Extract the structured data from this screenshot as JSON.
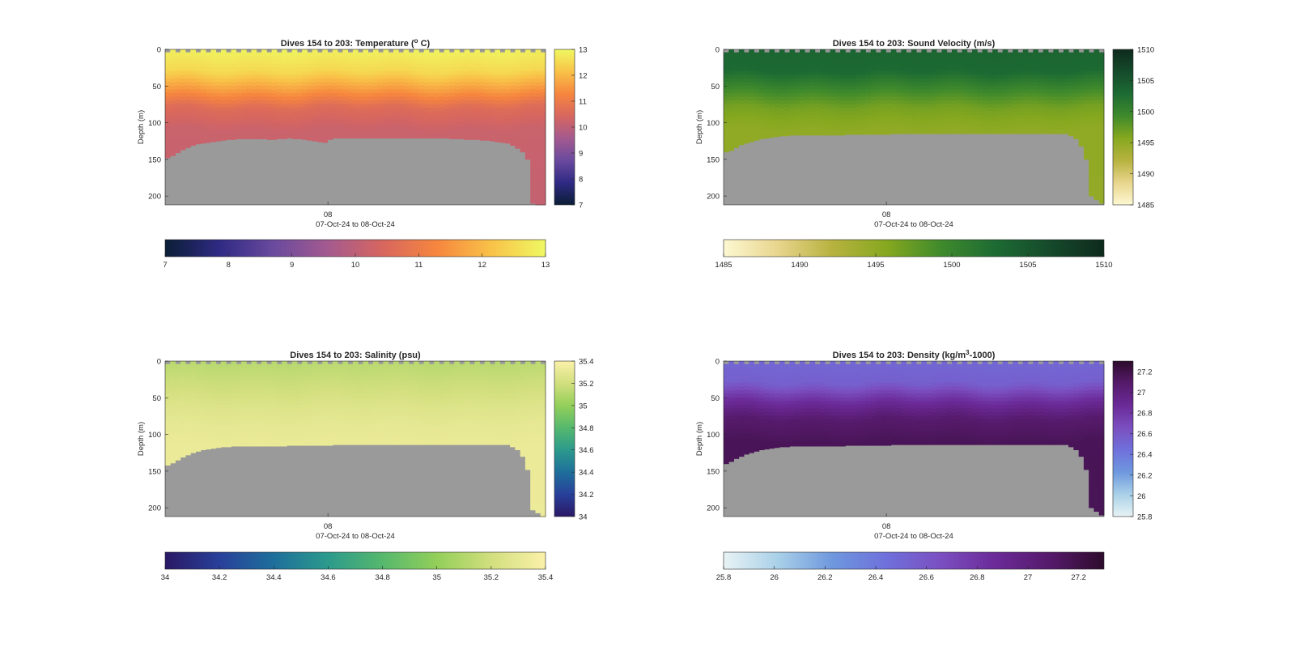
{
  "colors": {
    "background": "#ffffff",
    "nodata": "#9a9a9a",
    "axis": "#262626"
  },
  "chart_data": [
    {
      "id": "temperature",
      "type": "heatmap",
      "title_parts": [
        "Dives 154 to 203: Temperature (",
        "o",
        " C)"
      ],
      "ylabel": "Depth (m)",
      "xlabel": "07-Oct-24 to 08-Oct-24",
      "x_tick_labels": [
        "08"
      ],
      "y_ticks": [
        0,
        50,
        100,
        150,
        200
      ],
      "ylim": [
        0,
        212
      ],
      "y_reversed": true,
      "dives": [
        154,
        203
      ],
      "bottom_depth_m": [
        148,
        145,
        141,
        137,
        134,
        131,
        129,
        128,
        127,
        126,
        125,
        124,
        123,
        123,
        122,
        122,
        122,
        122,
        122,
        122,
        123,
        123,
        122,
        122,
        121,
        122,
        122,
        123,
        124,
        125,
        126,
        127,
        123,
        121,
        121,
        121,
        121,
        121,
        121,
        121,
        121,
        121,
        121,
        121,
        121,
        121,
        121,
        121,
        121,
        121,
        121,
        121,
        121,
        121,
        121,
        121,
        122,
        122,
        122,
        123,
        123,
        123,
        124,
        124,
        125,
        126,
        127,
        128,
        131,
        135,
        140,
        150,
        210,
        212,
        214
      ],
      "colorbar": {
        "label_side": "right",
        "range": [
          7,
          13
        ],
        "ticks": [
          7,
          8,
          9,
          10,
          11,
          12,
          13
        ],
        "colormap": [
          "#0b1e36",
          "#2f2a84",
          "#6a4a9e",
          "#a45a8f",
          "#d7665f",
          "#f6863e",
          "#f9c248",
          "#eff862"
        ]
      },
      "profile_stops": [
        [
          0,
          12.9
        ],
        [
          30,
          12.5
        ],
        [
          55,
          11.6
        ],
        [
          80,
          10.6
        ],
        [
          110,
          10.2
        ],
        [
          220,
          10.1
        ]
      ],
      "surface_value": 12.8
    },
    {
      "id": "sound_velocity",
      "type": "heatmap",
      "title_parts": [
        "Dives 154 to 203: Sound Velocity (m/s)"
      ],
      "ylabel": "Depth (m)",
      "xlabel": "07-Oct-24 to 08-Oct-24",
      "x_tick_labels": [
        "08"
      ],
      "y_ticks": [
        0,
        50,
        100,
        150,
        200
      ],
      "ylim": [
        0,
        212
      ],
      "y_reversed": true,
      "dives": [
        154,
        203
      ],
      "bottom_depth_m": [
        140,
        138,
        134,
        130,
        128,
        126,
        124,
        122,
        121,
        120,
        119,
        118,
        118,
        117,
        117,
        117,
        117,
        117,
        117,
        117,
        117,
        117,
        117,
        117,
        116,
        116,
        116,
        116,
        116,
        116,
        116,
        116,
        116,
        115,
        115,
        115,
        115,
        115,
        115,
        115,
        115,
        115,
        115,
        115,
        115,
        115,
        115,
        115,
        115,
        115,
        115,
        115,
        115,
        115,
        115,
        115,
        115,
        115,
        115,
        115,
        115,
        115,
        115,
        115,
        115,
        115,
        115,
        115,
        118,
        122,
        132,
        150,
        200,
        205,
        210
      ],
      "colorbar": {
        "label_side": "right",
        "range": [
          1485,
          1510
        ],
        "ticks": [
          1485,
          1490,
          1495,
          1500,
          1505,
          1510
        ],
        "colormap": [
          "#fdf8d2",
          "#e8d58d",
          "#b7b23f",
          "#86a81f",
          "#3f8a2c",
          "#1d6b33",
          "#154a2b",
          "#0e2a1d"
        ]
      },
      "profile_stops": [
        [
          0,
          1503.5
        ],
        [
          30,
          1503
        ],
        [
          55,
          1499.5
        ],
        [
          80,
          1496.5
        ],
        [
          110,
          1495
        ],
        [
          220,
          1494.8
        ]
      ],
      "surface_value": 1503.2
    },
    {
      "id": "salinity",
      "type": "heatmap",
      "title_parts": [
        "Dives 154 to 203: Salinity (psu)"
      ],
      "ylabel": "Depth (m)",
      "xlabel": "07-Oct-24 to 08-Oct-24",
      "x_tick_labels": [
        "08"
      ],
      "y_ticks": [
        0,
        50,
        100,
        150,
        200
      ],
      "ylim": [
        0,
        212
      ],
      "y_reversed": true,
      "dives": [
        154,
        203
      ],
      "bottom_depth_m": [
        142,
        139,
        135,
        131,
        128,
        125,
        123,
        121,
        120,
        119,
        118,
        117,
        117,
        116,
        116,
        116,
        116,
        116,
        116,
        116,
        116,
        116,
        116,
        116,
        115,
        115,
        115,
        115,
        115,
        115,
        115,
        115,
        115,
        114,
        114,
        114,
        114,
        114,
        114,
        114,
        114,
        114,
        114,
        114,
        114,
        114,
        114,
        114,
        114,
        114,
        114,
        114,
        114,
        114,
        114,
        114,
        114,
        114,
        114,
        114,
        114,
        114,
        114,
        114,
        114,
        114,
        114,
        114,
        117,
        121,
        130,
        148,
        203,
        207,
        212
      ],
      "colorbar": {
        "label_side": "right",
        "range": [
          34,
          35.4
        ],
        "ticks": [
          34,
          34.2,
          34.4,
          34.6,
          34.8,
          35,
          35.2,
          35.4
        ],
        "colormap": [
          "#2a1864",
          "#28409a",
          "#1e6f9b",
          "#2c9a8c",
          "#56b86d",
          "#93cf5a",
          "#d2df7e",
          "#fbf1a9"
        ]
      },
      "profile_stops": [
        [
          0,
          35.12
        ],
        [
          30,
          35.18
        ],
        [
          60,
          35.25
        ],
        [
          90,
          35.3
        ],
        [
          120,
          35.32
        ],
        [
          220,
          35.33
        ]
      ],
      "surface_value": 35.15
    },
    {
      "id": "density",
      "type": "heatmap",
      "title_parts": [
        "Dives 154 to 203: Density (kg/m",
        "3",
        "-1000)"
      ],
      "ylabel": "Depth (m)",
      "xlabel": "07-Oct-24 to 08-Oct-24",
      "x_tick_labels": [
        "08"
      ],
      "y_ticks": [
        0,
        50,
        100,
        150,
        200
      ],
      "ylim": [
        0,
        212
      ],
      "y_reversed": true,
      "dives": [
        154,
        203
      ],
      "bottom_depth_m": [
        140,
        137,
        133,
        130,
        127,
        125,
        123,
        121,
        120,
        119,
        118,
        117,
        117,
        116,
        116,
        116,
        116,
        116,
        116,
        116,
        116,
        116,
        116,
        116,
        115,
        115,
        115,
        115,
        115,
        115,
        115,
        115,
        115,
        114,
        114,
        114,
        114,
        114,
        114,
        114,
        114,
        114,
        114,
        114,
        114,
        114,
        114,
        114,
        114,
        114,
        114,
        114,
        114,
        114,
        114,
        114,
        114,
        114,
        114,
        114,
        114,
        114,
        114,
        114,
        114,
        114,
        114,
        114,
        117,
        121,
        130,
        148,
        200,
        205,
        210
      ],
      "colorbar": {
        "label_side": "right",
        "range": [
          25.8,
          27.3
        ],
        "ticks": [
          26,
          26.2,
          26.4,
          26.6,
          26.8,
          27,
          27.2
        ],
        "bottom_ticks": [
          25.8,
          26,
          26.2,
          26.4,
          26.6,
          26.8,
          27,
          27.2
        ],
        "right_ticks": [
          25.8,
          26,
          26.2,
          26.4,
          26.6,
          26.8,
          27,
          27.2
        ],
        "colormap": [
          "#e8f3f5",
          "#a9d0e8",
          "#6e98de",
          "#6f70db",
          "#7b4fc0",
          "#6b2a98",
          "#561a6b",
          "#2d0b2c"
        ]
      },
      "profile_stops": [
        [
          0,
          26.5
        ],
        [
          30,
          26.55
        ],
        [
          55,
          26.85
        ],
        [
          80,
          27.08
        ],
        [
          110,
          27.15
        ],
        [
          220,
          27.16
        ]
      ],
      "surface_value": 26.55
    }
  ]
}
